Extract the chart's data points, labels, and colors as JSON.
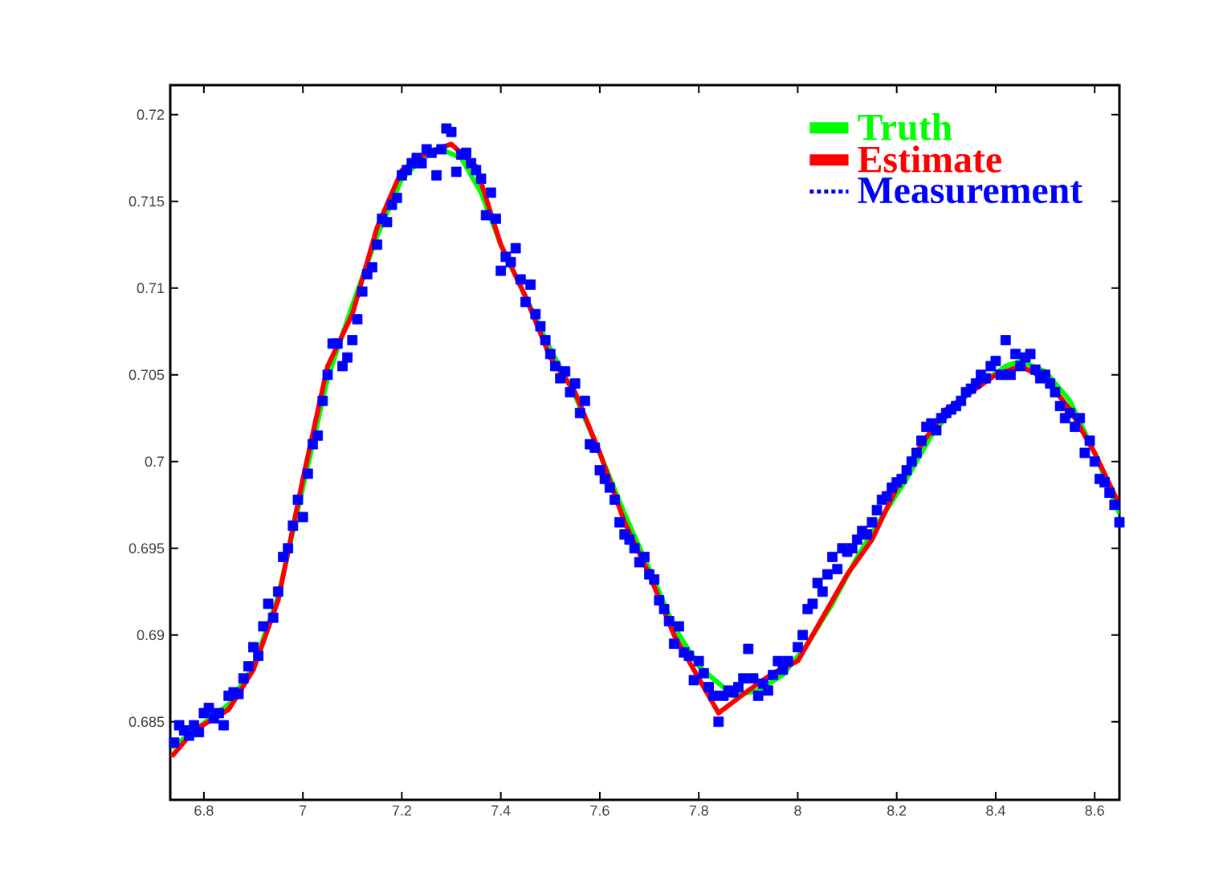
{
  "chart_data": {
    "type": "line",
    "xlim": [
      6.732,
      8.65
    ],
    "ylim": [
      0.6805,
      0.7217
    ],
    "xticks": [
      6.8,
      7,
      7.2,
      7.4,
      7.6,
      7.8,
      8,
      8.2,
      8.4,
      8.6
    ],
    "yticks": [
      0.685,
      0.69,
      0.695,
      0.7,
      0.705,
      0.71,
      0.715,
      0.72
    ],
    "legend": "top right",
    "grid": false,
    "series": [
      {
        "name": "Truth",
        "color": "#00ff00",
        "line_style": "solid",
        "marker": "none",
        "x": [
          6.735,
          6.78,
          6.85,
          6.9,
          6.95,
          7.0,
          7.05,
          7.1,
          7.15,
          7.2,
          7.25,
          7.28,
          7.32,
          7.36,
          7.4,
          7.45,
          7.5,
          7.55,
          7.6,
          7.65,
          7.7,
          7.75,
          7.8,
          7.87,
          7.92,
          7.97,
          8.02,
          8.07,
          8.12,
          8.17,
          8.22,
          8.27,
          8.32,
          8.37,
          8.42,
          8.45,
          8.5,
          8.55,
          8.6,
          8.65
        ],
        "values": [
          0.6835,
          0.6845,
          0.686,
          0.6882,
          0.6922,
          0.6985,
          0.7048,
          0.709,
          0.713,
          0.7163,
          0.7177,
          0.718,
          0.7175,
          0.7155,
          0.7125,
          0.7095,
          0.7065,
          0.7038,
          0.7005,
          0.697,
          0.6938,
          0.6905,
          0.6882,
          0.6865,
          0.6868,
          0.6877,
          0.6895,
          0.6918,
          0.6945,
          0.6968,
          0.699,
          0.7015,
          0.7033,
          0.7045,
          0.7055,
          0.7058,
          0.7052,
          0.7035,
          0.7005,
          0.697
        ]
      },
      {
        "name": "Estimate",
        "color": "#ff0000",
        "line_style": "solid",
        "marker": "none",
        "x": [
          6.735,
          6.78,
          6.85,
          6.9,
          6.95,
          7.0,
          7.05,
          7.1,
          7.15,
          7.2,
          7.25,
          7.3,
          7.35,
          7.4,
          7.45,
          7.5,
          7.55,
          7.6,
          7.65,
          7.7,
          7.75,
          7.8,
          7.84,
          7.9,
          7.95,
          8.0,
          8.05,
          8.1,
          8.15,
          8.2,
          8.25,
          8.3,
          8.35,
          8.4,
          8.45,
          8.5,
          8.55,
          8.6,
          8.65
        ],
        "values": [
          0.683,
          0.6845,
          0.6857,
          0.688,
          0.692,
          0.699,
          0.7055,
          0.7085,
          0.7135,
          0.7168,
          0.7178,
          0.7183,
          0.717,
          0.7125,
          0.7095,
          0.706,
          0.704,
          0.7005,
          0.6965,
          0.6935,
          0.69,
          0.6875,
          0.6855,
          0.6868,
          0.6878,
          0.6885,
          0.691,
          0.6935,
          0.6955,
          0.6985,
          0.701,
          0.703,
          0.704,
          0.705,
          0.7055,
          0.7048,
          0.703,
          0.7005,
          0.6975
        ]
      },
      {
        "name": "Measurement",
        "color": "#0000ff",
        "type": "scatter",
        "marker": "square",
        "x": [
          6.74,
          6.75,
          6.76,
          6.77,
          6.78,
          6.79,
          6.8,
          6.81,
          6.82,
          6.83,
          6.84,
          6.85,
          6.86,
          6.87,
          6.88,
          6.89,
          6.9,
          6.91,
          6.92,
          6.93,
          6.94,
          6.95,
          6.96,
          6.97,
          6.98,
          6.99,
          7.0,
          7.01,
          7.02,
          7.03,
          7.04,
          7.05,
          7.06,
          7.07,
          7.08,
          7.09,
          7.1,
          7.11,
          7.12,
          7.13,
          7.14,
          7.15,
          7.16,
          7.17,
          7.18,
          7.19,
          7.2,
          7.21,
          7.22,
          7.23,
          7.24,
          7.25,
          7.26,
          7.27,
          7.28,
          7.29,
          7.3,
          7.31,
          7.32,
          7.33,
          7.34,
          7.35,
          7.36,
          7.37,
          7.38,
          7.39,
          7.4,
          7.41,
          7.42,
          7.43,
          7.44,
          7.45,
          7.46,
          7.47,
          7.48,
          7.49,
          7.5,
          7.51,
          7.52,
          7.53,
          7.54,
          7.55,
          7.56,
          7.57,
          7.58,
          7.59,
          7.6,
          7.61,
          7.62,
          7.63,
          7.64,
          7.65,
          7.66,
          7.67,
          7.68,
          7.69,
          7.7,
          7.71,
          7.72,
          7.73,
          7.74,
          7.75,
          7.76,
          7.77,
          7.78,
          7.79,
          7.8,
          7.81,
          7.82,
          7.83,
          7.84,
          7.85,
          7.86,
          7.87,
          7.88,
          7.89,
          7.9,
          7.91,
          7.92,
          7.93,
          7.94,
          7.95,
          7.96,
          7.97,
          7.98,
          8.0,
          8.01,
          8.02,
          8.03,
          8.04,
          8.05,
          8.06,
          8.07,
          8.08,
          8.09,
          8.1,
          8.11,
          8.12,
          8.13,
          8.14,
          8.15,
          8.16,
          8.17,
          8.18,
          8.19,
          8.2,
          8.21,
          8.22,
          8.23,
          8.24,
          8.25,
          8.26,
          8.27,
          8.28,
          8.29,
          8.3,
          8.31,
          8.32,
          8.33,
          8.34,
          8.35,
          8.36,
          8.37,
          8.38,
          8.39,
          8.4,
          8.41,
          8.42,
          8.43,
          8.44,
          8.45,
          8.46,
          8.47,
          8.48,
          8.49,
          8.5,
          8.51,
          8.52,
          8.53,
          8.54,
          8.55,
          8.56,
          8.57,
          8.58,
          8.59,
          8.6,
          8.61,
          8.62,
          8.63,
          8.64,
          8.65
        ],
        "values": [
          0.6838,
          0.6848,
          0.6845,
          0.6842,
          0.6848,
          0.6844,
          0.6855,
          0.6858,
          0.6852,
          0.6855,
          0.6848,
          0.6865,
          0.6867,
          0.6866,
          0.6875,
          0.6882,
          0.6893,
          0.6888,
          0.6905,
          0.6918,
          0.691,
          0.6925,
          0.6945,
          0.695,
          0.6963,
          0.6978,
          0.6968,
          0.6993,
          0.701,
          0.7015,
          0.7035,
          0.705,
          0.7068,
          0.7068,
          0.7055,
          0.706,
          0.707,
          0.7082,
          0.7098,
          0.7108,
          0.7112,
          0.7125,
          0.714,
          0.7138,
          0.7148,
          0.7152,
          0.7165,
          0.7168,
          0.7172,
          0.7175,
          0.7172,
          0.718,
          0.7178,
          0.7165,
          0.718,
          0.7192,
          0.719,
          0.7167,
          0.7177,
          0.7178,
          0.7172,
          0.7168,
          0.7163,
          0.7142,
          0.7155,
          0.714,
          0.711,
          0.7118,
          0.7115,
          0.7123,
          0.7105,
          0.7092,
          0.7102,
          0.7085,
          0.7078,
          0.707,
          0.7062,
          0.7055,
          0.7048,
          0.7052,
          0.704,
          0.7045,
          0.7028,
          0.7035,
          0.701,
          0.7008,
          0.6995,
          0.699,
          0.6985,
          0.6978,
          0.6965,
          0.6958,
          0.6955,
          0.695,
          0.6942,
          0.6945,
          0.6935,
          0.6932,
          0.692,
          0.6915,
          0.6908,
          0.6895,
          0.6905,
          0.689,
          0.6888,
          0.6874,
          0.6885,
          0.6878,
          0.687,
          0.6865,
          0.685,
          0.6865,
          0.6868,
          0.6867,
          0.687,
          0.6875,
          0.6892,
          0.6875,
          0.6865,
          0.6872,
          0.6868,
          0.6877,
          0.6885,
          0.688,
          0.6885,
          0.6893,
          0.69,
          0.6915,
          0.6918,
          0.693,
          0.6925,
          0.6935,
          0.6945,
          0.6938,
          0.695,
          0.6948,
          0.695,
          0.6955,
          0.696,
          0.6958,
          0.6965,
          0.6972,
          0.6978,
          0.698,
          0.6985,
          0.6988,
          0.699,
          0.6995,
          0.7,
          0.7005,
          0.7012,
          0.702,
          0.7022,
          0.7018,
          0.7025,
          0.7028,
          0.703,
          0.7032,
          0.7035,
          0.704,
          0.7042,
          0.7045,
          0.705,
          0.7048,
          0.7055,
          0.7058,
          0.705,
          0.707,
          0.705,
          0.7062,
          0.7055,
          0.706,
          0.7062,
          0.7053,
          0.7048,
          0.705,
          0.7045,
          0.704,
          0.7032,
          0.7025,
          0.7028,
          0.702,
          0.7025,
          0.7005,
          0.7012,
          0.7,
          0.699,
          0.6988,
          0.6982,
          0.6975,
          0.6965
        ]
      }
    ]
  }
}
